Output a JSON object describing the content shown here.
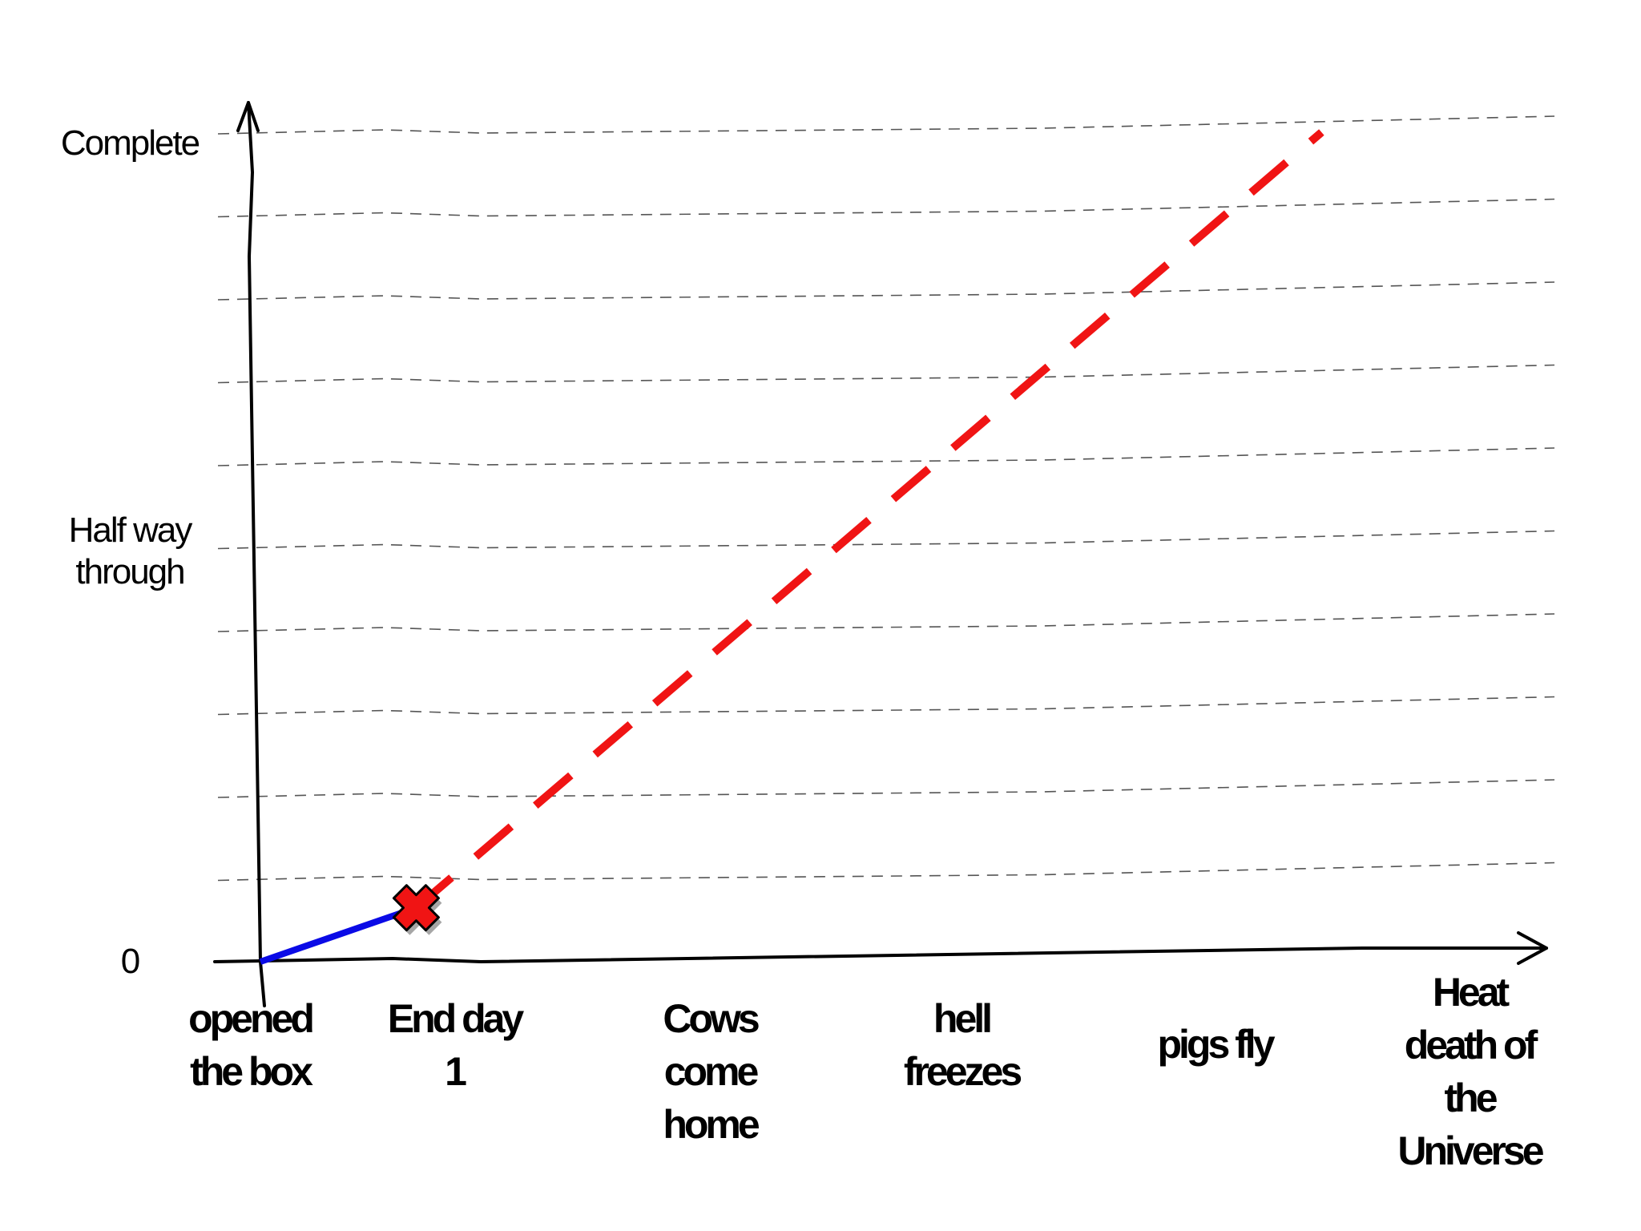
{
  "chart_data": {
    "type": "line",
    "title": "",
    "xlabel": "",
    "ylabel": "",
    "x_categories": [
      "opened\nthe box",
      "End day\n1",
      "Cows\ncome\nhome",
      "hell\nfreezes",
      "pigs fly",
      "Heat\ndeath of\nthe\nUniverse"
    ],
    "y_tick_labels": [
      {
        "value": 0,
        "label": "0"
      },
      {
        "value": 50,
        "label": "Half way\nthrough"
      },
      {
        "value": 100,
        "label": "Complete"
      }
    ],
    "ylim": [
      0,
      100
    ],
    "grid": true,
    "grid_step": 10,
    "series": [
      {
        "style": "solid",
        "color": "#0a0ae6",
        "points": [
          {
            "x": 0,
            "y": 0
          },
          {
            "x": 0.8,
            "y": 6.5
          }
        ]
      },
      {
        "style": "dashed",
        "color": "#f01414",
        "points": [
          {
            "x": 0.8,
            "y": 6.5
          },
          {
            "x": 5.45,
            "y": 100
          }
        ]
      }
    ],
    "marker": {
      "shape": "cross",
      "color": "#f01414",
      "x": 0.8,
      "y": 6.5
    }
  }
}
